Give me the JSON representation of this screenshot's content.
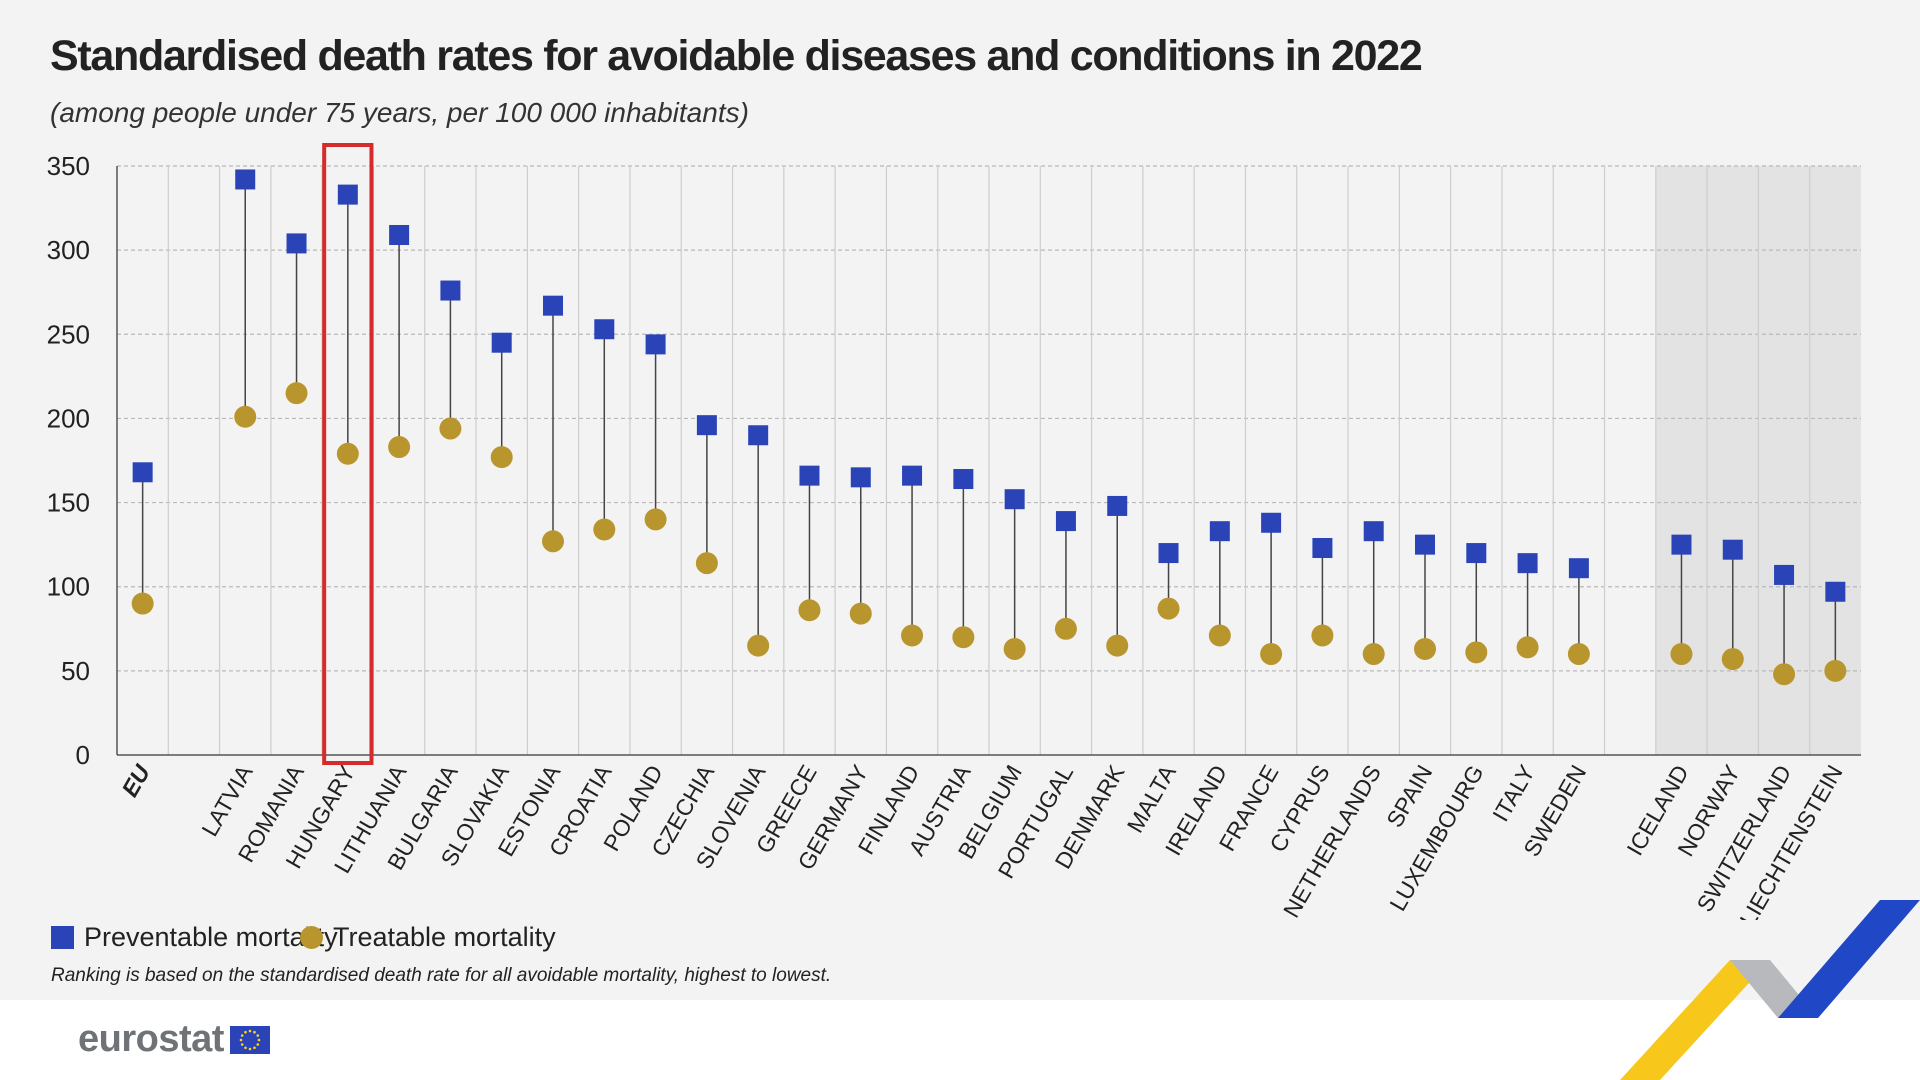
{
  "title": "Standardised death rates for avoidable diseases and conditions in 2022",
  "subtitle": "(among people under 75 years, per 100 000 inhabitants)",
  "legend": {
    "preventable": "Preventable mortality",
    "treatable": "Treatable mortality"
  },
  "footnote": "Ranking is based on the standardised death rate for all avoidable mortality, highest to lowest.",
  "logo": {
    "text": "eurostat",
    "flag_icon": "eu-flag-icon"
  },
  "colors": {
    "preventable": "#2a44b8",
    "treatable": "#b8962d",
    "highlight": "#d62b2b",
    "shaded": "#e3e3e3"
  },
  "chart_data": {
    "type": "scatter",
    "title": "Standardised death rates for avoidable diseases and conditions in 2022",
    "subtitle": "(among people under 75 years, per 100 000 inhabitants)",
    "ylim": [
      0,
      350
    ],
    "yticks": [
      0,
      50,
      100,
      150,
      200,
      250,
      300,
      350
    ],
    "grid": true,
    "legend_position": "bottom-left",
    "highlighted": "HUNGARY",
    "shaded_group": [
      "ICELAND",
      "NORWAY",
      "SWITZERLAND",
      "LIECHTENSTEIN"
    ],
    "categories": [
      "EU",
      "",
      "LATVIA",
      "ROMANIA",
      "HUNGARY",
      "LITHUANIA",
      "BULGARIA",
      "SLOVAKIA",
      "ESTONIA",
      "CROATIA",
      "POLAND",
      "CZECHIA",
      "SLOVENIA",
      "GREECE",
      "GERMANY",
      "FINLAND",
      "AUSTRIA",
      "BELGIUM",
      "PORTUGAL",
      "DENMARK",
      "MALTA",
      "IRELAND",
      "FRANCE",
      "CYPRUS",
      "NETHERLANDS",
      "SPAIN",
      "LUXEMBOURG",
      "ITALY",
      "SWEDEN",
      "",
      "ICELAND",
      "NORWAY",
      "SWITZERLAND",
      "LIECHTENSTEIN"
    ],
    "series": [
      {
        "name": "Preventable mortality",
        "marker": "square",
        "values": [
          168,
          null,
          342,
          304,
          333,
          309,
          276,
          245,
          267,
          253,
          244,
          196,
          190,
          166,
          165,
          166,
          164,
          152,
          139,
          148,
          120,
          133,
          138,
          123,
          133,
          125,
          120,
          114,
          111,
          null,
          125,
          122,
          107,
          97
        ]
      },
      {
        "name": "Treatable mortality",
        "marker": "circle",
        "values": [
          90,
          null,
          201,
          215,
          179,
          183,
          194,
          177,
          127,
          134,
          140,
          114,
          65,
          86,
          84,
          71,
          70,
          63,
          75,
          65,
          87,
          71,
          60,
          71,
          60,
          63,
          61,
          64,
          60,
          null,
          60,
          57,
          48,
          50
        ]
      }
    ]
  }
}
